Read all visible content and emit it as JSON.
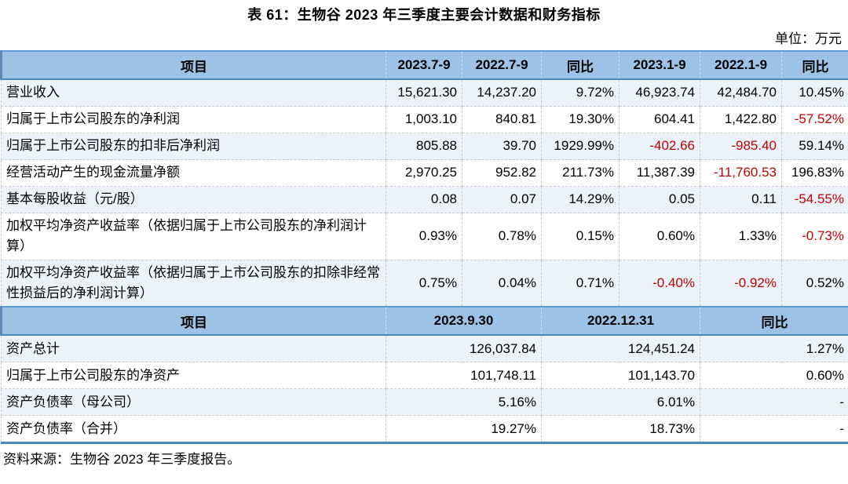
{
  "title": "表 61：生物谷 2023 年三季度主要会计数据和财务指标",
  "unit_note": "单位：万元",
  "colors": {
    "header_bg": "#9CC3E6",
    "alt_row_bg": "#EBF2FA",
    "negative_text": "#C00000",
    "table_border_blue": "#4E86C0"
  },
  "section1": {
    "headers": [
      "项目",
      "2023.7-9",
      "2022.7-9",
      "同比",
      "2023.1-9",
      "2022.1-9",
      "同比"
    ],
    "rows": [
      {
        "label": "营业收入",
        "values": [
          "15,621.30",
          "14,237.20",
          "9.72%",
          "46,923.74",
          "42,484.70",
          "10.45%"
        ]
      },
      {
        "label": "归属于上市公司股东的净利润",
        "values": [
          "1,003.10",
          "840.81",
          "19.30%",
          "604.41",
          "1,422.80",
          "-57.52%"
        ]
      },
      {
        "label": "归属于上市公司股东的扣非后净利润",
        "values": [
          "805.88",
          "39.70",
          "1929.99%",
          "-402.66",
          "-985.40",
          "59.14%"
        ]
      },
      {
        "label": "经营活动产生的现金流量净额",
        "values": [
          "2,970.25",
          "952.82",
          "211.73%",
          "11,387.39",
          "-11,760.53",
          "196.83%"
        ]
      },
      {
        "label": "基本每股收益（元/股）",
        "values": [
          "0.08",
          "0.07",
          "14.29%",
          "0.05",
          "0.11",
          "-54.55%"
        ]
      },
      {
        "label": "加权平均净资产收益率（依据归属于上市公司股东的净利润计算）",
        "values": [
          "0.93%",
          "0.78%",
          "0.15%",
          "0.60%",
          "1.33%",
          "-0.73%"
        ]
      },
      {
        "label": "加权平均净资产收益率（依据归属于上市公司股东的扣除非经常性损益后的净利润计算）",
        "values": [
          "0.75%",
          "0.04%",
          "0.71%",
          "-0.40%",
          "-0.92%",
          "0.52%"
        ]
      }
    ]
  },
  "section2": {
    "headers": [
      "项目",
      "2023.9.30",
      "2022.12.31",
      "同比"
    ],
    "rows": [
      {
        "label": "资产总计",
        "values": [
          "126,037.84",
          "124,451.24",
          "1.27%"
        ]
      },
      {
        "label": "归属于上市公司股东的净资产",
        "values": [
          "101,748.11",
          "101,143.70",
          "0.60%"
        ]
      },
      {
        "label": "资产负债率（母公司）",
        "values": [
          "5.16%",
          "6.01%",
          "-"
        ]
      },
      {
        "label": "资产负债率（合并）",
        "values": [
          "19.27%",
          "18.73%",
          "-"
        ]
      }
    ]
  },
  "source": "资料来源：生物谷 2023 年三季度报告。"
}
